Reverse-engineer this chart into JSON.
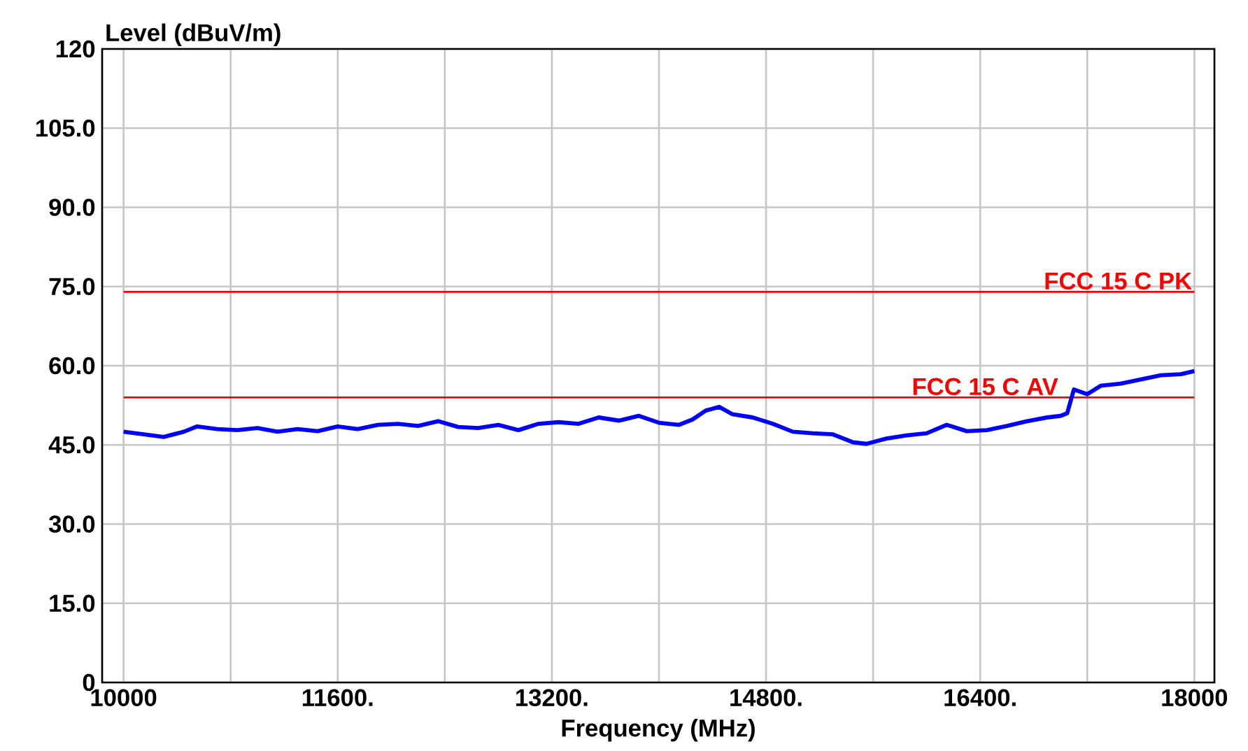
{
  "chart_data": {
    "type": "line",
    "xlabel": "Frequency (MHz)",
    "ylabel": "Level (dBuV/m)",
    "xlim": [
      9840,
      18150
    ],
    "ylim": [
      0,
      120
    ],
    "xticks": [
      10000,
      {
        "value": 10800,
        "label": null
      },
      {
        "value": 11600,
        "label": "11600."
      },
      {
        "value": 12400,
        "label": null
      },
      {
        "value": 13200,
        "label": "13200."
      },
      {
        "value": 14000,
        "label": null
      },
      {
        "value": 14800,
        "label": "14800."
      },
      {
        "value": 15600,
        "label": null
      },
      {
        "value": 16400,
        "label": "16400."
      },
      {
        "value": 17200,
        "label": null
      },
      18000
    ],
    "yticks": [
      0,
      {
        "value": 15,
        "label": "15.0"
      },
      {
        "value": 30,
        "label": "30.0"
      },
      {
        "value": 45,
        "label": "45.0"
      },
      {
        "value": 60,
        "label": "60.0"
      },
      {
        "value": 75,
        "label": "75.0"
      },
      {
        "value": 90,
        "label": "90.0"
      },
      {
        "value": 105,
        "label": "105.0"
      },
      120
    ],
    "grid": true,
    "marker": "none",
    "line_style": "solid",
    "series": [
      {
        "color": "#0000ff",
        "x": [
          10000,
          10150,
          10300,
          10450,
          10550,
          10700,
          10850,
          11000,
          11150,
          11300,
          11450,
          11600,
          11750,
          11900,
          12050,
          12200,
          12350,
          12500,
          12650,
          12800,
          12950,
          13100,
          13250,
          13400,
          13550,
          13700,
          13850,
          14000,
          14150,
          14250,
          14350,
          14450,
          14550,
          14700,
          14850,
          15000,
          15150,
          15300,
          15450,
          15550,
          15700,
          15850,
          16000,
          16150,
          16300,
          16450,
          16600,
          16750,
          16900,
          17000,
          17050,
          17100,
          17200,
          17300,
          17450,
          17600,
          17750,
          17900,
          18000
        ],
        "values": [
          47.5,
          47.0,
          46.5,
          47.5,
          48.5,
          48.0,
          47.8,
          48.2,
          47.5,
          48.0,
          47.6,
          48.5,
          48.0,
          48.8,
          49.0,
          48.6,
          49.5,
          48.4,
          48.2,
          48.8,
          47.8,
          49.0,
          49.3,
          49.0,
          50.2,
          49.6,
          50.5,
          49.2,
          48.8,
          49.8,
          51.5,
          52.2,
          50.8,
          50.2,
          49.0,
          47.5,
          47.2,
          47.0,
          45.5,
          45.2,
          46.2,
          46.8,
          47.2,
          48.8,
          47.6,
          47.8,
          48.6,
          49.5,
          50.2,
          50.5,
          51.0,
          55.5,
          54.6,
          56.2,
          56.6,
          57.4,
          58.2,
          58.4,
          59.0
        ]
      }
    ],
    "ref_lines": [
      {
        "axis": "y",
        "value": 74,
        "label": "FCC 15 C PK",
        "color": "#ff0000"
      },
      {
        "axis": "y",
        "value": 54,
        "label": "FCC 15 C AV",
        "color": "#ff0000"
      }
    ]
  }
}
